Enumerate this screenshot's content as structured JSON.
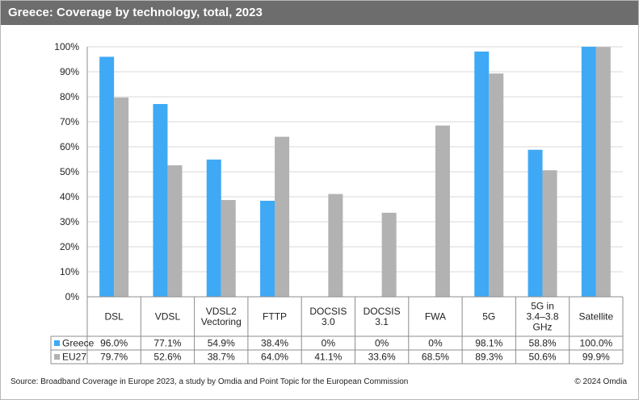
{
  "title": "Greece: Coverage by technology, total, 2023",
  "source": "Source: Broadband Coverage in Europe 2023, a study by Omdia and Point Topic for the European Commission",
  "copyright": "© 2024 Omdia",
  "colors": {
    "greece": "#3fa9f5",
    "eu27": "#b2b2b2",
    "title_bg": "#6d6d6d"
  },
  "chart_data": {
    "type": "bar",
    "categories": [
      [
        "DSL"
      ],
      [
        "VDSL"
      ],
      [
        "VDSL2",
        "Vectoring"
      ],
      [
        "FTTP"
      ],
      [
        "DOCSIS",
        "3.0"
      ],
      [
        "DOCSIS",
        "3.1"
      ],
      [
        "FWA"
      ],
      [
        "5G"
      ],
      [
        "5G in",
        "3.4–3.8",
        "GHz"
      ],
      [
        "Satellite"
      ]
    ],
    "series": [
      {
        "name": "Greece",
        "values": [
          96.0,
          77.1,
          54.9,
          38.4,
          0,
          0,
          0,
          98.1,
          58.8,
          100.0
        ],
        "labels": [
          "96.0%",
          "77.1%",
          "54.9%",
          "38.4%",
          "0%",
          "0%",
          "0%",
          "98.1%",
          "58.8%",
          "100.0%"
        ]
      },
      {
        "name": "EU27",
        "values": [
          79.7,
          52.6,
          38.7,
          64.0,
          41.1,
          33.6,
          68.5,
          89.3,
          50.6,
          99.9
        ],
        "labels": [
          "79.7%",
          "52.6%",
          "38.7%",
          "64.0%",
          "41.1%",
          "33.6%",
          "68.5%",
          "89.3%",
          "50.6%",
          "99.9%"
        ]
      }
    ],
    "yticks": [
      "0%",
      "10%",
      "20%",
      "30%",
      "40%",
      "50%",
      "60%",
      "70%",
      "80%",
      "90%",
      "100%"
    ],
    "ylim": [
      0,
      100
    ],
    "grid": true,
    "legend": "data table"
  }
}
